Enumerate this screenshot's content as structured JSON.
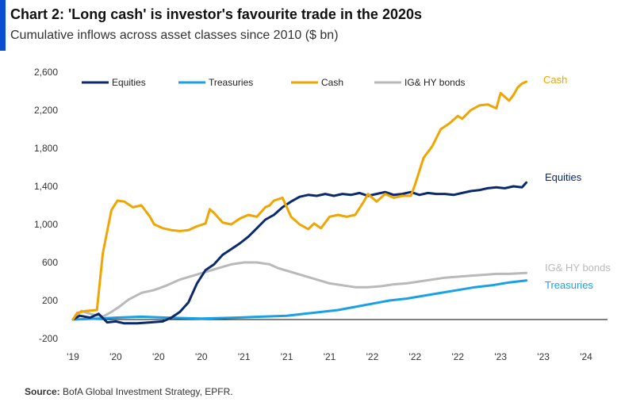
{
  "header": {
    "title": "Chart 2: 'Long cash' is investor's favourite trade in the 2020s",
    "subtitle": "Cumulative inflows across asset classes since 2010 ($ bn)"
  },
  "footer": {
    "source_label": "Source:",
    "source_text": "BofA Global Investment Strategy, EPFR."
  },
  "chart_data": {
    "type": "line",
    "title": "Chart 2: 'Long cash' is investor's favourite trade in the 2020s",
    "subtitle": "Cumulative inflows across asset classes since 2010 ($ bn)",
    "xlabel": "",
    "ylabel": "",
    "xlim": [
      2019.0,
      2025.25
    ],
    "ylim": [
      -200,
      2600
    ],
    "y_ticks": [
      -200,
      200,
      600,
      1000,
      1400,
      1800,
      2200,
      2600
    ],
    "y_tick_labels": [
      "-200",
      "200",
      "600",
      "1,000",
      "1,400",
      "1,800",
      "2,200",
      "2,600"
    ],
    "x_ticks": [
      2019.0,
      2019.5,
      2020.0,
      2020.5,
      2021.0,
      2021.5,
      2022.0,
      2022.5,
      2023.0,
      2023.5,
      2024.0,
      2024.5,
      2025.0
    ],
    "x_tick_labels": [
      "'19",
      "'20",
      "'20",
      "'20",
      "'21",
      "'21",
      "'21",
      "'22",
      "'22",
      "'22",
      "'23",
      "'23",
      "'24"
    ],
    "grid": false,
    "zero_line": true,
    "legend": "top",
    "colors": {
      "equities": "#0b2a6e",
      "treasuries": "#1aa0e6",
      "cash": "#f0a500",
      "bonds": "#b9b9b9",
      "axis": "#000000",
      "accent": "#0a4fd1"
    },
    "series": [
      {
        "key": "equities",
        "name": "Equities",
        "end_label": "Equities",
        "x": [
          2019.0,
          2019.08,
          2019.2,
          2019.3,
          2019.4,
          2019.5,
          2019.6,
          2019.75,
          2019.9,
          2020.05,
          2020.15,
          2020.25,
          2020.35,
          2020.45,
          2020.55,
          2020.65,
          2020.75,
          2020.85,
          2020.95,
          2021.05,
          2021.15,
          2021.25,
          2021.35,
          2021.45,
          2021.55,
          2021.65,
          2021.75,
          2021.85,
          2021.95,
          2022.05,
          2022.15,
          2022.25,
          2022.35,
          2022.45,
          2022.55,
          2022.65,
          2022.75,
          2022.85,
          2022.95,
          2023.05,
          2023.15,
          2023.25,
          2023.35,
          2023.45,
          2023.55,
          2023.65,
          2023.75,
          2023.85,
          2023.95,
          2024.05,
          2024.15,
          2024.25,
          2024.3
        ],
        "values": [
          0,
          40,
          20,
          60,
          -30,
          -20,
          -40,
          -40,
          -30,
          -20,
          20,
          80,
          180,
          380,
          520,
          580,
          680,
          740,
          800,
          870,
          960,
          1050,
          1100,
          1180,
          1240,
          1290,
          1310,
          1300,
          1320,
          1300,
          1320,
          1310,
          1330,
          1300,
          1320,
          1340,
          1310,
          1320,
          1340,
          1310,
          1330,
          1320,
          1320,
          1310,
          1330,
          1350,
          1360,
          1380,
          1390,
          1380,
          1400,
          1390,
          1440
        ]
      },
      {
        "key": "treasuries",
        "name": "Treasuries",
        "end_label": "Treasuries",
        "x": [
          2019.0,
          2019.3,
          2019.5,
          2019.8,
          2020.1,
          2020.5,
          2020.9,
          2021.2,
          2021.5,
          2021.8,
          2022.1,
          2022.4,
          2022.7,
          2022.9,
          2023.1,
          2023.3,
          2023.5,
          2023.7,
          2023.9,
          2024.1,
          2024.3
        ],
        "values": [
          0,
          10,
          20,
          30,
          20,
          10,
          20,
          30,
          40,
          70,
          100,
          150,
          200,
          220,
          250,
          280,
          310,
          340,
          360,
          390,
          410
        ]
      },
      {
        "key": "cash",
        "name": "Cash",
        "end_label": "Cash",
        "x": [
          2019.0,
          2019.05,
          2019.15,
          2019.28,
          2019.35,
          2019.45,
          2019.52,
          2019.6,
          2019.7,
          2019.8,
          2019.9,
          2019.95,
          2020.05,
          2020.15,
          2020.25,
          2020.35,
          2020.45,
          2020.55,
          2020.6,
          2020.65,
          2020.75,
          2020.85,
          2020.95,
          2021.05,
          2021.15,
          2021.25,
          2021.3,
          2021.35,
          2021.45,
          2021.55,
          2021.65,
          2021.75,
          2021.82,
          2021.9,
          2022.0,
          2022.1,
          2022.2,
          2022.3,
          2022.4,
          2022.45,
          2022.55,
          2022.65,
          2022.75,
          2022.85,
          2022.95,
          2023.0,
          2023.1,
          2023.2,
          2023.3,
          2023.4,
          2023.5,
          2023.55,
          2023.65,
          2023.75,
          2023.85,
          2023.95,
          2024.0,
          2024.05,
          2024.1,
          2024.15,
          2024.2,
          2024.25,
          2024.3
        ],
        "values": [
          0,
          70,
          90,
          100,
          700,
          1150,
          1250,
          1240,
          1180,
          1200,
          1080,
          1000,
          960,
          940,
          930,
          940,
          980,
          1010,
          1160,
          1120,
          1020,
          1000,
          1060,
          1100,
          1080,
          1180,
          1200,
          1250,
          1280,
          1080,
          1000,
          950,
          1010,
          960,
          1080,
          1100,
          1080,
          1100,
          1240,
          1320,
          1240,
          1320,
          1280,
          1300,
          1300,
          1420,
          1700,
          1820,
          2000,
          2060,
          2140,
          2110,
          2200,
          2250,
          2260,
          2220,
          2380,
          2340,
          2300,
          2360,
          2440,
          2480,
          2500
        ]
      },
      {
        "key": "bonds",
        "name": "IG& HY bonds",
        "end_label": "IG& HY bonds",
        "x": [
          2019.0,
          2019.1,
          2019.2,
          2019.35,
          2019.45,
          2019.55,
          2019.65,
          2019.8,
          2019.95,
          2020.1,
          2020.25,
          2020.4,
          2020.55,
          2020.7,
          2020.85,
          2021.0,
          2021.15,
          2021.3,
          2021.4,
          2021.55,
          2021.7,
          2021.85,
          2022.0,
          2022.15,
          2022.3,
          2022.45,
          2022.6,
          2022.75,
          2022.9,
          2023.05,
          2023.2,
          2023.35,
          2023.5,
          2023.65,
          2023.8,
          2023.95,
          2024.1,
          2024.3
        ],
        "values": [
          0,
          90,
          60,
          30,
          80,
          140,
          210,
          280,
          310,
          360,
          420,
          460,
          500,
          540,
          580,
          600,
          600,
          580,
          540,
          500,
          460,
          420,
          380,
          360,
          340,
          340,
          350,
          370,
          380,
          400,
          420,
          440,
          450,
          460,
          470,
          480,
          480,
          490
        ]
      }
    ]
  }
}
